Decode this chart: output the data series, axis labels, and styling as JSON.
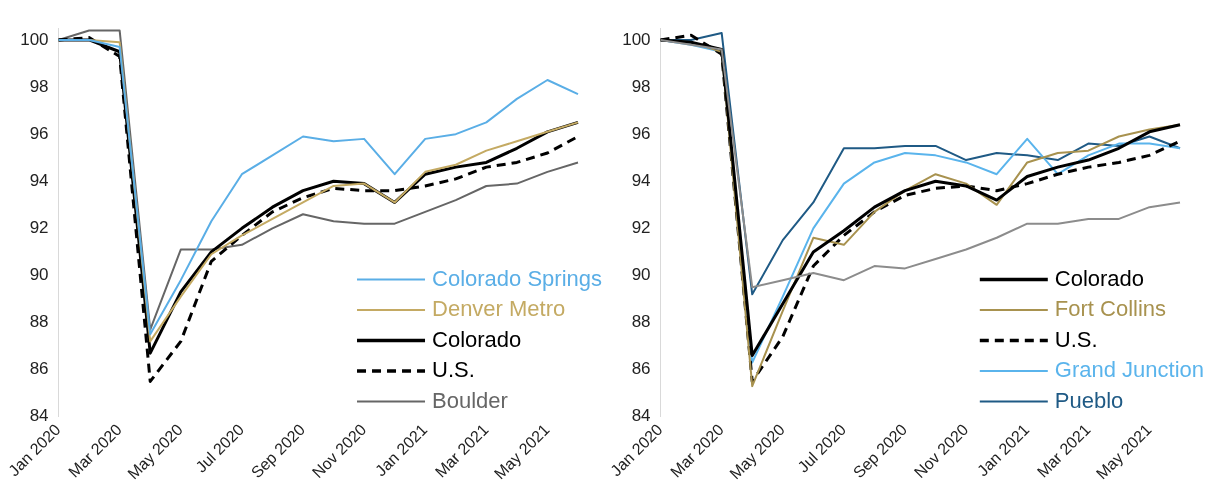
{
  "chart_data": [
    {
      "type": "line",
      "categories": [
        "Jan 2020",
        null,
        "Mar 2020",
        null,
        "May 2020",
        null,
        "Jul 2020",
        null,
        "Sep 2020",
        null,
        "Nov 2020",
        null,
        "Jan 2021",
        null,
        "Mar 2021",
        null,
        "May 2021",
        null
      ],
      "ylim": [
        84,
        100.5
      ],
      "yticks": [
        84,
        86,
        88,
        90,
        92,
        94,
        96,
        98,
        100
      ],
      "grid": false,
      "legend": "bottom right",
      "marker": "none",
      "series": [
        {
          "name": "Colorado Springs",
          "color": "#5aaee6",
          "line_style": "solid",
          "values": [
            100,
            100,
            99.7,
            87.5,
            89.8,
            92.3,
            94.3,
            95.1,
            95.9,
            95.7,
            95.8,
            94.3,
            95.8,
            96.0,
            96.5,
            97.5,
            98.3,
            97.7
          ]
        },
        {
          "name": "Denver Metro",
          "color": "#c4aa63",
          "line_style": "solid",
          "values": [
            100,
            100,
            99.9,
            87.2,
            89.1,
            90.9,
            91.7,
            92.4,
            93.1,
            93.8,
            93.9,
            93.1,
            94.4,
            94.7,
            95.3,
            95.7,
            96.1,
            96.5
          ]
        },
        {
          "name": "Colorado",
          "color": "#000000",
          "line_style": "solid",
          "values": [
            100,
            100,
            99.5,
            86.7,
            89.3,
            91.0,
            92.0,
            92.9,
            93.6,
            94.0,
            93.9,
            93.1,
            94.3,
            94.6,
            94.8,
            95.4,
            96.1,
            96.5
          ]
        },
        {
          "name": "U.S.",
          "color": "#000000",
          "line_style": "dashed",
          "values": [
            100,
            100.1,
            99.3,
            85.5,
            87.2,
            90.6,
            91.7,
            92.7,
            93.3,
            93.7,
            93.6,
            93.6,
            93.8,
            94.1,
            94.6,
            94.8,
            95.2,
            95.9
          ]
        },
        {
          "name": "Boulder",
          "color": "#666666",
          "line_style": "solid",
          "values": [
            100,
            100.4,
            100.4,
            87.7,
            91.1,
            91.1,
            91.3,
            92.0,
            92.6,
            92.3,
            92.2,
            92.2,
            92.7,
            93.2,
            93.8,
            93.9,
            94.4,
            94.8
          ]
        }
      ]
    },
    {
      "type": "line",
      "categories": [
        "Jan 2020",
        null,
        "Mar 2020",
        null,
        "May 2020",
        null,
        "Jul 2020",
        null,
        "Sep 2020",
        null,
        "Nov 2020",
        null,
        "Jan 2021",
        null,
        "Mar 2021",
        null,
        "May 2021",
        null
      ],
      "ylim": [
        84,
        100.5
      ],
      "yticks": [
        84,
        86,
        88,
        90,
        92,
        94,
        96,
        98,
        100
      ],
      "grid": false,
      "legend": "bottom right",
      "marker": "none",
      "series": [
        {
          "color": "#8c8c8c",
          "line_style": "solid",
          "values": [
            100,
            99.8,
            99.6,
            89.5,
            89.8,
            90.1,
            89.8,
            90.4,
            90.3,
            90.7,
            91.1,
            91.6,
            92.2,
            92.2,
            92.4,
            92.4,
            92.9,
            93.1
          ]
        },
        {
          "name": "Colorado",
          "color": "#000000",
          "line_style": "solid",
          "values": [
            100,
            99.9,
            99.6,
            86.6,
            88.8,
            91.0,
            91.9,
            92.9,
            93.6,
            94.0,
            93.8,
            93.2,
            94.2,
            94.6,
            94.9,
            95.4,
            96.1,
            96.4
          ]
        },
        {
          "name": "Fort Collins",
          "color": "#a8924f",
          "line_style": "solid",
          "values": [
            100,
            99.9,
            99.5,
            85.3,
            88.5,
            91.6,
            91.3,
            92.7,
            93.6,
            94.3,
            93.9,
            93.0,
            94.8,
            95.2,
            95.3,
            95.9,
            96.2,
            96.4
          ]
        },
        {
          "name": "U.S.",
          "color": "#000000",
          "line_style": "dashed",
          "values": [
            100,
            100.2,
            99.4,
            85.5,
            87.4,
            90.4,
            91.7,
            92.7,
            93.4,
            93.7,
            93.8,
            93.6,
            93.9,
            94.3,
            94.6,
            94.8,
            95.1,
            95.7
          ]
        },
        {
          "name": "Grand Junction",
          "color": "#5ab4ec",
          "line_style": "solid",
          "values": [
            100,
            99.8,
            99.5,
            86.3,
            89.1,
            92.0,
            93.9,
            94.8,
            95.2,
            95.1,
            94.8,
            94.3,
            95.8,
            94.3,
            95.1,
            95.6,
            95.6,
            95.4
          ]
        },
        {
          "name": "Pueblo",
          "color": "#1f5a85",
          "line_style": "solid",
          "values": [
            100,
            100,
            100.3,
            89.2,
            91.5,
            93.1,
            95.4,
            95.4,
            95.5,
            95.5,
            94.9,
            95.2,
            95.1,
            94.9,
            95.6,
            95.5,
            95.9,
            95.4
          ]
        }
      ]
    }
  ]
}
